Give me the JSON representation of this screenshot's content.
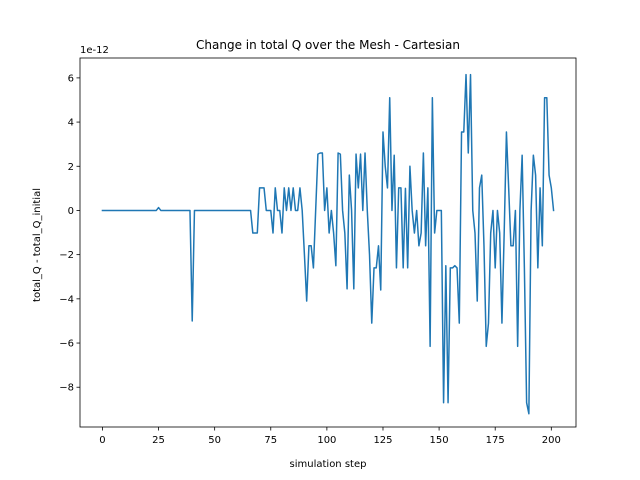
{
  "chart_data": {
    "type": "line",
    "title": "Change in total Q over the Mesh - Cartesian",
    "xlabel": "simulation step",
    "ylabel": "total_Q - total_Q_initial",
    "offset_text": "1e-12",
    "xlim": [
      -10,
      211
    ],
    "ylim": [
      -9.8,
      6.9
    ],
    "xticks": [
      0,
      25,
      50,
      75,
      100,
      125,
      150,
      175,
      200
    ],
    "yticks": [
      -8,
      -6,
      -4,
      -2,
      0,
      2,
      4,
      6
    ],
    "grid": false,
    "series_color": "#1f77b4",
    "series": [
      {
        "x": [
          0,
          1,
          2,
          3,
          4,
          5,
          6,
          7,
          8,
          9,
          10,
          11,
          12,
          13,
          14,
          15,
          16,
          17,
          18,
          19,
          20,
          21,
          22,
          23,
          24,
          25,
          26,
          27,
          28,
          29,
          30,
          31,
          32,
          33,
          34,
          35,
          36,
          37,
          38,
          39,
          40,
          41,
          42,
          43,
          44,
          45,
          46,
          47,
          48,
          49,
          50,
          51,
          52,
          53,
          54,
          55,
          56,
          57,
          58,
          59,
          60,
          61,
          62,
          63,
          64,
          65,
          66,
          67,
          68,
          69,
          70,
          71,
          72,
          73,
          74,
          75,
          76,
          77,
          78,
          79,
          80,
          81,
          82,
          83,
          84,
          85,
          86,
          87,
          88,
          89,
          90,
          91,
          92,
          93,
          94,
          95,
          96,
          97,
          98,
          99,
          100,
          101,
          102,
          103,
          104,
          105,
          106,
          107,
          108,
          109,
          110,
          111,
          112,
          113,
          114,
          115,
          116,
          117,
          118,
          119,
          120,
          121,
          122,
          123,
          124,
          125,
          126,
          127,
          128,
          129,
          130,
          131,
          132,
          133,
          134,
          135,
          136,
          137,
          138,
          139,
          140,
          141,
          142,
          143,
          144,
          145,
          146,
          147,
          148,
          149,
          150,
          151,
          152,
          153,
          154,
          155,
          156,
          157,
          158,
          159,
          160,
          161,
          162,
          163,
          164,
          165,
          166,
          167,
          168,
          169,
          170,
          171,
          172,
          173,
          174,
          175,
          176,
          177,
          178,
          179,
          180,
          181,
          182,
          183,
          184,
          185,
          186,
          187,
          188,
          189,
          190,
          191,
          192,
          193,
          194,
          195,
          196,
          197,
          198,
          199,
          200,
          201
        ],
        "values": [
          0,
          0,
          0,
          0,
          0,
          0,
          0,
          0,
          0,
          0,
          0,
          0,
          0,
          0,
          0,
          0,
          0,
          0,
          0,
          0,
          0,
          0,
          0,
          0,
          0,
          0.13,
          0,
          0,
          0,
          0,
          0,
          0,
          0,
          0,
          0,
          0,
          0,
          0,
          0,
          0,
          -5.0,
          0,
          0,
          0,
          0,
          0,
          0,
          0,
          0,
          0,
          0,
          0,
          0,
          0,
          0,
          0,
          0,
          0,
          0,
          0,
          0,
          0,
          0,
          0,
          0,
          0,
          0,
          -1.02,
          -1.02,
          -1.02,
          1.02,
          1.02,
          1.02,
          0,
          0,
          0,
          -1.02,
          1.02,
          0,
          0,
          -1.02,
          1.02,
          0,
          1.02,
          0,
          1.02,
          0,
          0,
          1.02,
          0,
          -2.0,
          -4.1,
          -1.6,
          -1.6,
          -2.6,
          0,
          2.55,
          2.6,
          2.6,
          0,
          1.02,
          -1.02,
          0,
          -1.02,
          -2.5,
          2.6,
          2.55,
          0,
          -1.02,
          -3.55,
          1.6,
          0,
          -3.55,
          2.55,
          1.02,
          2.55,
          0,
          2.6,
          0,
          -2.0,
          -5.1,
          -2.6,
          -2.6,
          -1.6,
          -3.6,
          3.55,
          2.0,
          1.02,
          5.1,
          0,
          2.5,
          -2.6,
          1.02,
          1.02,
          -2.6,
          1.0,
          -2.6,
          2.0,
          0,
          -1.02,
          0,
          -1.6,
          -1.02,
          2.6,
          -1.6,
          1.02,
          -6.15,
          5.1,
          -1.02,
          0,
          0,
          0,
          -8.7,
          -2.5,
          -8.7,
          -2.6,
          -2.6,
          -2.5,
          -2.6,
          -5.1,
          3.55,
          3.55,
          6.15,
          2.6,
          6.15,
          0,
          -1.02,
          -4.1,
          1.02,
          1.6,
          -1.6,
          -6.15,
          -5.1,
          -1.02,
          0,
          -2.6,
          0,
          -1.02,
          -5.1,
          -1.02,
          3.55,
          1.02,
          -1.6,
          -1.6,
          0,
          -6.15,
          0,
          2.5,
          -2.6,
          -8.7,
          -9.2,
          0,
          2.5,
          1.6,
          -2.6,
          1.02,
          -1.6,
          5.1,
          5.1,
          1.6,
          1.02,
          0
        ]
      }
    ]
  }
}
